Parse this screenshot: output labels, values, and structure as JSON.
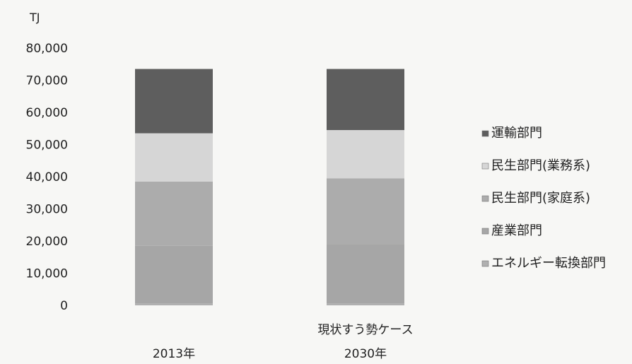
{
  "chart_data": {
    "type": "bar",
    "stacked": true,
    "unit_label": "TJ",
    "ylim": [
      0,
      80000
    ],
    "yticks": [
      0,
      10000,
      20000,
      30000,
      40000,
      50000,
      60000,
      70000,
      80000
    ],
    "ytick_labels": [
      "0",
      "10,000",
      "20,000",
      "30,000",
      "40,000",
      "50,000",
      "60,000",
      "70,000",
      "80,000"
    ],
    "grid": false,
    "legend_position": "right",
    "categories": [
      {
        "label": "2013年",
        "sublabel": ""
      },
      {
        "label": "2030年",
        "sublabel": "現状すう勢ケース"
      }
    ],
    "series": [
      {
        "name": "エネルギー転換部門",
        "values": [
          500,
          500
        ],
        "color": "#b0b0b0"
      },
      {
        "name": "産業部門",
        "values": [
          18000,
          18500
        ],
        "color": "#a6a6a6"
      },
      {
        "name": "民生部門(家庭系)",
        "values": [
          20000,
          20500
        ],
        "color": "#acacac"
      },
      {
        "name": "民生部門(業務系)",
        "values": [
          15000,
          15000
        ],
        "color": "#d6d6d6"
      },
      {
        "name": "運輸部門",
        "values": [
          20000,
          19000
        ],
        "color": "#5e5e5e"
      }
    ],
    "legend_order": [
      "運輸部門",
      "民生部門(業務系)",
      "民生部門(家庭系)",
      "産業部門",
      "エネルギー転換部門"
    ]
  }
}
